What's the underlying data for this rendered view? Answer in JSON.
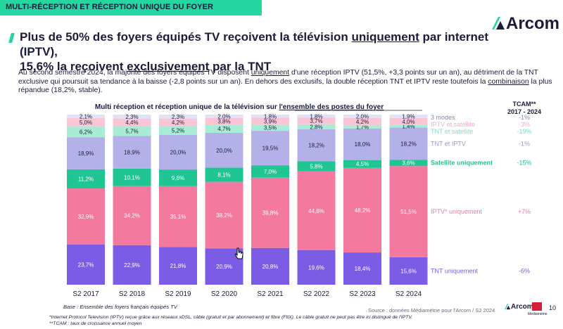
{
  "header": {
    "section_label": "MULTI-RÉCEPTION ET RÉCEPTION UNIQUE DU FOYER",
    "logo_text": "Arcom",
    "title_line1_a": "Plus de 50% des foyers équipés TV reçoivent la télévision ",
    "title_line1_u": "uniquement",
    "title_line1_b": " par internet (IPTV),",
    "title_line2_a": "15,6% la reçoivent ",
    "title_line2_u": "exclusivement",
    "title_line2_b": " par la TNT"
  },
  "intro": {
    "p1": "Au second semestre 2024, la majorité des foyers équipés TV disposent ",
    "p1_u": "uniquement",
    "p2": " d'une réception IPTV (51,5%, +3,3 points sur un an), au détriment de la TNT exclusive qui poursuit sa tendance à la baisse (-2,8 points sur un an). En dehors des exclusifs, la double réception TNT et IPTV reste toutefois la ",
    "p2_u": "combinaison",
    "p3": " la plus répandue (18,2%, stable)."
  },
  "tcam_header": {
    "line1": "TCAM**",
    "line2": "2017 - 2024"
  },
  "chart_data": {
    "type": "bar",
    "stacked": true,
    "title_a": "Multi réception et réception unique de la télévision sur ",
    "title_u": "l'ensemble des postes du foyer",
    "categories": [
      "S2 2017",
      "S2 2018",
      "S2 2019",
      "S2 2020",
      "S2 2021",
      "S2 2022",
      "S2 2023",
      "S2 2024"
    ],
    "ylim": [
      0,
      100
    ],
    "series": [
      {
        "name": "TNT uniquement",
        "color": "#7b5ce4",
        "label_color": "#ffffff",
        "tcam": "-6%",
        "tcam_color": "#7b5ce4",
        "values": [
          23.7,
          22.9,
          21.8,
          20.9,
          20.8,
          19.6,
          18.4,
          15.6
        ],
        "labels": [
          "23,7%",
          "22,9%",
          "21,8%",
          "20,9%",
          "20,8%",
          "19,6%",
          "18,4%",
          "15,6%"
        ]
      },
      {
        "name": "IPTV* uniquement",
        "color": "#f4799f",
        "label_color": "#ffffff",
        "tcam": "+7%",
        "tcam_color": "#f4799f",
        "values": [
          32.9,
          34.2,
          35.1,
          38.2,
          39.8,
          44.8,
          48.2,
          51.5
        ],
        "labels": [
          "32,9%",
          "34,2%",
          "35,1%",
          "38,2%",
          "39,8%",
          "44,8%",
          "48,2%",
          "51,5%"
        ]
      },
      {
        "name": "Satellite uniquement",
        "color": "#1fc593",
        "label_color": "#ffffff",
        "tcam": "-15%",
        "tcam_color": "#1fc593",
        "values": [
          11.2,
          10.1,
          9.6,
          8.1,
          7.0,
          5.8,
          4.5,
          3.6
        ],
        "labels": [
          "11,2%",
          "10,1%",
          "9,6%",
          "8,1%",
          "7,0%",
          "5,8%",
          "4,5%",
          "3,6%"
        ]
      },
      {
        "name": "TNT et IPTV",
        "color": "#b3b1e8",
        "label_color": "#1b1b3a",
        "tcam": "-1%",
        "tcam_color": "#9a97c8",
        "values": [
          18.9,
          18.9,
          20.0,
          20.0,
          19.5,
          18.2,
          18.0,
          18.2
        ],
        "labels": [
          "18,9%",
          "18,9%",
          "20,0%",
          "20,0%",
          "19,5%",
          "18,2%",
          "18,0%",
          "18,2%"
        ]
      },
      {
        "name": "TNT et satellite",
        "color": "#a8ecd6",
        "label_color": "#1b1b3a",
        "tcam": "-19%",
        "tcam_color": "#7fdcbb",
        "values": [
          6.2,
          5.7,
          5.2,
          4.7,
          3.5,
          2.8,
          1.7,
          1.4
        ],
        "labels": [
          "6,2%",
          "5,7%",
          "5,2%",
          "4,7%",
          "3,5%",
          "2,8%",
          "1,7%",
          "1,4%"
        ]
      },
      {
        "name": "IPTV et satellite",
        "color": "#fac6d6",
        "label_color": "#1b1b3a",
        "tcam": "-3%",
        "tcam_color": "#f7a9c0",
        "values": [
          5.0,
          4.4,
          4.2,
          3.8,
          3.9,
          3.7,
          4.2,
          4.0
        ],
        "labels": [
          "5,0%",
          "4,4%",
          "4,2%",
          "3,8%",
          "3,9%",
          "3,7%",
          "4,2%",
          "4,0%"
        ]
      },
      {
        "name": "3 modes",
        "color": "#e2e1f5",
        "label_color": "#1b1b3a",
        "tcam": "-1%",
        "tcam_color": "#8a88a8",
        "values": [
          2.1,
          2.3,
          2.3,
          2.0,
          1.8,
          1.8,
          2.0,
          1.9
        ],
        "labels": [
          "2,1%",
          "2,3%",
          "2,3%",
          "2,0%",
          "1,8%",
          "1,8%",
          "2,0%",
          "1,9%"
        ]
      }
    ]
  },
  "footer": {
    "base": "Base : Ensemble des foyers français équipés TV",
    "source": "Source : données Médiamétrie pour l'Arcom / S2 2024",
    "footnote1": "*Internet Protocol Television (IPTV) reçue grâce aux réseaux xDSL, câble (gratuit et par abonnement) et fibre (FttX). Le câble gratuit ne peut pas être ici distingué de l'IPTV.",
    "footnote2": "**TCAM : taux de croissance annuel moyen",
    "logo_text": "Arcom",
    "mediametrie": "Médiamétrie",
    "page_number": "10"
  }
}
